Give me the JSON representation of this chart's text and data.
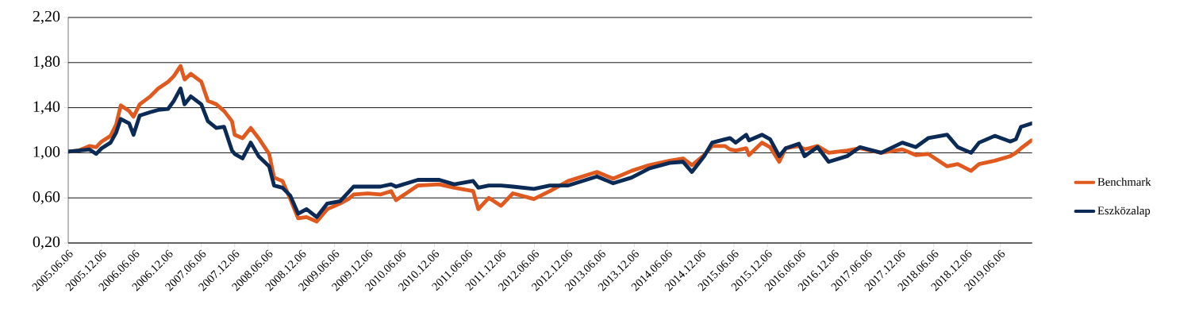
{
  "chart_data": {
    "type": "line",
    "x": [
      "2005-06-06",
      "2005-08-03",
      "2005-09-30",
      "2005-11-06",
      "2005-12-06",
      "2006-01-24",
      "2006-02-24",
      "2006-03-21",
      "2006-05-06",
      "2006-05-30",
      "2006-07-03",
      "2006-08-30",
      "2006-10-12",
      "2006-12-06",
      "2007-01-06",
      "2007-02-12",
      "2007-03-06",
      "2007-04-09",
      "2007-06-06",
      "2007-07-12",
      "2007-08-27",
      "2007-10-09",
      "2007-11-21",
      "2007-12-06",
      "2008-01-18",
      "2008-03-03",
      "2008-04-15",
      "2008-06-12",
      "2008-07-09",
      "2008-08-24",
      "2008-10-06",
      "2008-11-18",
      "2009-01-03",
      "2009-02-28",
      "2009-04-27",
      "2009-07-06",
      "2009-08-21",
      "2009-09-18",
      "2009-12-06",
      "2010-02-12",
      "2010-04-12",
      "2010-05-09",
      "2010-09-06",
      "2011-01-01",
      "2011-03-24",
      "2011-07-06",
      "2011-08-03",
      "2011-09-30",
      "2011-12-06",
      "2012-02-09",
      "2012-06-03",
      "2012-08-30",
      "2012-12-09",
      "2013-05-15",
      "2013-08-12",
      "2013-11-21",
      "2014-02-24",
      "2014-06-18",
      "2014-08-30",
      "2014-10-18",
      "2014-12-24",
      "2015-02-06",
      "2015-04-18",
      "2015-05-15",
      "2015-06-15",
      "2015-08-12",
      "2015-08-27",
      "2015-11-06",
      "2015-12-21",
      "2016-02-09",
      "2016-03-15",
      "2016-05-27",
      "2016-06-27",
      "2016-09-06",
      "2016-11-06",
      "2017-02-15",
      "2017-04-27",
      "2017-08-21",
      "2017-12-15",
      "2018-02-27",
      "2018-05-06",
      "2018-08-18",
      "2018-10-15",
      "2018-12-27",
      "2019-02-09",
      "2019-05-06",
      "2019-07-30",
      "2019-08-30",
      "2019-09-27",
      "2019-11-24"
    ],
    "series": [
      {
        "name": "Benchmark",
        "color": "#e05a1f",
        "values": [
          1.01,
          1.02,
          1.06,
          1.05,
          1.1,
          1.15,
          1.25,
          1.42,
          1.37,
          1.32,
          1.43,
          1.5,
          1.57,
          1.63,
          1.68,
          1.77,
          1.65,
          1.7,
          1.63,
          1.46,
          1.43,
          1.37,
          1.28,
          1.16,
          1.13,
          1.22,
          1.13,
          0.99,
          0.78,
          0.75,
          0.59,
          0.42,
          0.43,
          0.39,
          0.5,
          0.55,
          0.59,
          0.63,
          0.64,
          0.63,
          0.66,
          0.58,
          0.71,
          0.72,
          0.69,
          0.66,
          0.5,
          0.6,
          0.53,
          0.64,
          0.59,
          0.66,
          0.75,
          0.83,
          0.77,
          0.84,
          0.89,
          0.93,
          0.95,
          0.89,
          0.98,
          1.06,
          1.06,
          1.03,
          1.02,
          1.04,
          0.98,
          1.09,
          1.05,
          0.92,
          1.04,
          1.06,
          1.03,
          1.06,
          1.0,
          1.02,
          1.04,
          1.0,
          1.03,
          0.98,
          0.99,
          0.88,
          0.9,
          0.84,
          0.9,
          0.93,
          0.97,
          1.0,
          1.04,
          1.11
        ]
      },
      {
        "name": "Eszközalap",
        "color": "#0c2a56",
        "values": [
          1.01,
          1.02,
          1.03,
          0.99,
          1.04,
          1.09,
          1.18,
          1.3,
          1.26,
          1.16,
          1.33,
          1.36,
          1.38,
          1.39,
          1.46,
          1.57,
          1.43,
          1.5,
          1.43,
          1.28,
          1.22,
          1.23,
          1.02,
          0.99,
          0.95,
          1.09,
          0.97,
          0.88,
          0.71,
          0.69,
          0.62,
          0.46,
          0.5,
          0.43,
          0.55,
          0.57,
          0.65,
          0.7,
          0.7,
          0.7,
          0.72,
          0.7,
          0.76,
          0.76,
          0.72,
          0.75,
          0.69,
          0.71,
          0.71,
          0.7,
          0.68,
          0.71,
          0.71,
          0.79,
          0.73,
          0.78,
          0.86,
          0.91,
          0.92,
          0.83,
          0.97,
          1.09,
          1.12,
          1.13,
          1.09,
          1.16,
          1.11,
          1.16,
          1.12,
          0.97,
          1.04,
          1.08,
          0.97,
          1.05,
          0.92,
          0.97,
          1.05,
          1.0,
          1.09,
          1.05,
          1.13,
          1.16,
          1.05,
          1.0,
          1.09,
          1.15,
          1.1,
          1.12,
          1.23,
          1.26
        ]
      }
    ],
    "xlim": [
      "2005-06-06",
      "2019-11-27"
    ],
    "xticks": [
      {
        "value": "2005-06-06",
        "label": "2005.06.06"
      },
      {
        "value": "2005-12-06",
        "label": "2005.12.06"
      },
      {
        "value": "2006-06-06",
        "label": "2006.06.06"
      },
      {
        "value": "2006-12-06",
        "label": "2006.12.06"
      },
      {
        "value": "2007-06-06",
        "label": "2007.06.06"
      },
      {
        "value": "2007-12-06",
        "label": "2007.12.06"
      },
      {
        "value": "2008-06-06",
        "label": "2008.06.06"
      },
      {
        "value": "2008-12-06",
        "label": "2008.12.06"
      },
      {
        "value": "2009-06-06",
        "label": "2009.06.06"
      },
      {
        "value": "2009-12-06",
        "label": "2009.12.06"
      },
      {
        "value": "2010-06-06",
        "label": "2010.06.06"
      },
      {
        "value": "2010-12-06",
        "label": "2010.12.06"
      },
      {
        "value": "2011-06-06",
        "label": "2011.06.06"
      },
      {
        "value": "2011-12-06",
        "label": "2011.12.06"
      },
      {
        "value": "2012-06-06",
        "label": "2012.06.06"
      },
      {
        "value": "2012-12-06",
        "label": "2012.12.06"
      },
      {
        "value": "2013-06-06",
        "label": "2013.06.06"
      },
      {
        "value": "2013-12-06",
        "label": "2013.12.06"
      },
      {
        "value": "2014-06-06",
        "label": "2014.06.06"
      },
      {
        "value": "2014-12-06",
        "label": "2014.12.06"
      },
      {
        "value": "2015-06-06",
        "label": "2015.06.06"
      },
      {
        "value": "2015-12-06",
        "label": "2015.12.06"
      },
      {
        "value": "2016-06-06",
        "label": "2016.06.06"
      },
      {
        "value": "2016-12-06",
        "label": "2016.12.06"
      },
      {
        "value": "2017-06-06",
        "label": "2017.06.06"
      },
      {
        "value": "2017-12-06",
        "label": "2017.12.06"
      },
      {
        "value": "2018-06-06",
        "label": "2018.06.06"
      },
      {
        "value": "2018-12-06",
        "label": "2018.12.06"
      },
      {
        "value": "2019-06-06",
        "label": "2019.06.06"
      }
    ],
    "ylim": [
      0.2,
      2.2
    ],
    "yticks": [
      {
        "value": 0.2,
        "label": "0,20"
      },
      {
        "value": 0.6,
        "label": "0,60"
      },
      {
        "value": 1.0,
        "label": "1,00"
      },
      {
        "value": 1.4,
        "label": "1,40"
      },
      {
        "value": 1.8,
        "label": "1,80"
      },
      {
        "value": 2.2,
        "label": "2,20"
      }
    ],
    "grid": "y",
    "legend": "right",
    "line_style": "solid"
  }
}
